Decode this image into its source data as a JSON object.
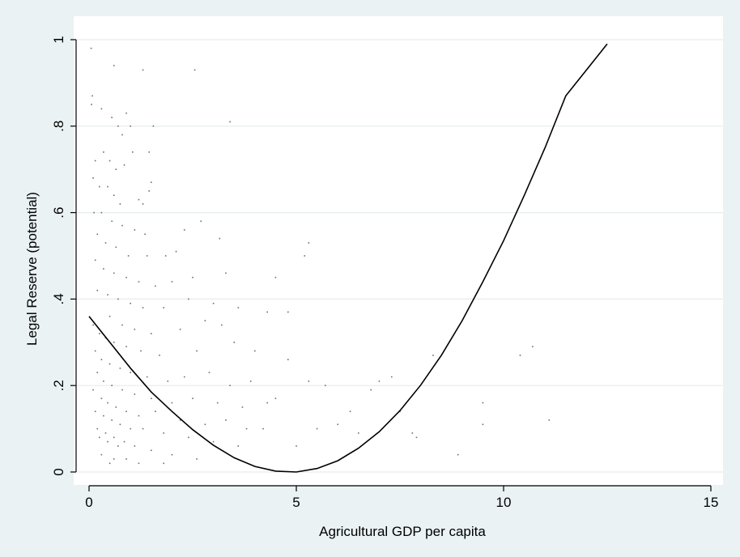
{
  "chart_data": {
    "type": "scatter",
    "title": "",
    "xlabel": "Agricultural GDP per capita",
    "ylabel": "Legal Reserve (potential)",
    "xlim": [
      0,
      15
    ],
    "ylim": [
      0,
      1
    ],
    "x_ticks": [
      0,
      5,
      10,
      15
    ],
    "y_ticks": [
      0,
      0.2,
      0.4,
      0.6,
      0.8,
      1
    ],
    "x_tick_labels": [
      "0",
      "5",
      "10",
      "15"
    ],
    "y_tick_labels": [
      "0",
      ".2",
      ".4",
      ".6",
      ".8",
      "1"
    ],
    "grid": "horizontal",
    "legend": "none",
    "colors": {
      "background": "#eaf2f3",
      "plot_background": "#ffffff",
      "points": "#6d6d6d",
      "fit_line": "#000000",
      "grid": "#e6ecec"
    },
    "series": [
      {
        "type": "scatter",
        "points": [
          [
            0.05,
            0.98
          ],
          [
            0.08,
            0.87
          ],
          [
            0.06,
            0.85
          ],
          [
            0.6,
            0.94
          ],
          [
            1.3,
            0.93
          ],
          [
            2.55,
            0.93
          ],
          [
            3.4,
            0.81
          ],
          [
            0.3,
            0.84
          ],
          [
            0.55,
            0.82
          ],
          [
            0.7,
            0.8
          ],
          [
            0.9,
            0.83
          ],
          [
            0.8,
            0.78
          ],
          [
            1.0,
            0.8
          ],
          [
            1.05,
            0.74
          ],
          [
            1.45,
            0.74
          ],
          [
            1.55,
            0.8
          ],
          [
            0.15,
            0.72
          ],
          [
            0.35,
            0.74
          ],
          [
            0.5,
            0.72
          ],
          [
            0.65,
            0.7
          ],
          [
            0.85,
            0.71
          ],
          [
            1.5,
            0.67
          ],
          [
            1.45,
            0.65
          ],
          [
            0.1,
            0.68
          ],
          [
            0.25,
            0.66
          ],
          [
            0.45,
            0.66
          ],
          [
            0.6,
            0.64
          ],
          [
            0.75,
            0.62
          ],
          [
            1.2,
            0.63
          ],
          [
            1.3,
            0.62
          ],
          [
            0.12,
            0.6
          ],
          [
            0.3,
            0.6
          ],
          [
            0.55,
            0.58
          ],
          [
            0.8,
            0.57
          ],
          [
            1.1,
            0.56
          ],
          [
            1.35,
            0.55
          ],
          [
            2.3,
            0.56
          ],
          [
            2.7,
            0.58
          ],
          [
            0.2,
            0.55
          ],
          [
            0.4,
            0.53
          ],
          [
            0.65,
            0.52
          ],
          [
            0.95,
            0.5
          ],
          [
            1.4,
            0.5
          ],
          [
            1.85,
            0.5
          ],
          [
            2.1,
            0.51
          ],
          [
            3.15,
            0.54
          ],
          [
            5.3,
            0.53
          ],
          [
            5.2,
            0.5
          ],
          [
            0.15,
            0.49
          ],
          [
            0.35,
            0.47
          ],
          [
            0.6,
            0.46
          ],
          [
            0.9,
            0.45
          ],
          [
            1.2,
            0.44
          ],
          [
            1.6,
            0.43
          ],
          [
            2.0,
            0.44
          ],
          [
            2.5,
            0.45
          ],
          [
            3.3,
            0.46
          ],
          [
            4.5,
            0.45
          ],
          [
            0.2,
            0.42
          ],
          [
            0.45,
            0.41
          ],
          [
            0.7,
            0.4
          ],
          [
            1.0,
            0.39
          ],
          [
            1.3,
            0.38
          ],
          [
            1.8,
            0.38
          ],
          [
            2.4,
            0.4
          ],
          [
            3.0,
            0.39
          ],
          [
            3.6,
            0.38
          ],
          [
            4.3,
            0.37
          ],
          [
            4.8,
            0.37
          ],
          [
            2.8,
            0.35
          ],
          [
            3.2,
            0.34
          ],
          [
            2.2,
            0.33
          ],
          [
            0.5,
            0.36
          ],
          [
            0.8,
            0.34
          ],
          [
            1.1,
            0.33
          ],
          [
            1.5,
            0.32
          ],
          [
            0.1,
            0.34
          ],
          [
            0.25,
            0.32
          ],
          [
            0.4,
            0.31
          ],
          [
            0.6,
            0.3
          ],
          [
            0.9,
            0.29
          ],
          [
            1.25,
            0.28
          ],
          [
            1.7,
            0.27
          ],
          [
            2.6,
            0.28
          ],
          [
            3.5,
            0.3
          ],
          [
            4.0,
            0.28
          ],
          [
            0.15,
            0.28
          ],
          [
            0.3,
            0.26
          ],
          [
            0.5,
            0.25
          ],
          [
            0.75,
            0.24
          ],
          [
            1.0,
            0.23
          ],
          [
            1.4,
            0.22
          ],
          [
            1.9,
            0.21
          ],
          [
            2.3,
            0.22
          ],
          [
            2.9,
            0.23
          ],
          [
            3.4,
            0.2
          ],
          [
            3.9,
            0.21
          ],
          [
            0.2,
            0.23
          ],
          [
            0.35,
            0.21
          ],
          [
            0.55,
            0.2
          ],
          [
            0.8,
            0.19
          ],
          [
            1.1,
            0.18
          ],
          [
            1.5,
            0.17
          ],
          [
            2.0,
            0.16
          ],
          [
            2.5,
            0.17
          ],
          [
            3.1,
            0.16
          ],
          [
            3.7,
            0.15
          ],
          [
            4.3,
            0.16
          ],
          [
            0.1,
            0.19
          ],
          [
            0.3,
            0.17
          ],
          [
            0.45,
            0.16
          ],
          [
            0.65,
            0.15
          ],
          [
            0.9,
            0.14
          ],
          [
            1.2,
            0.13
          ],
          [
            1.6,
            0.14
          ],
          [
            2.2,
            0.12
          ],
          [
            2.8,
            0.11
          ],
          [
            3.3,
            0.12
          ],
          [
            3.8,
            0.1
          ],
          [
            0.15,
            0.14
          ],
          [
            0.35,
            0.13
          ],
          [
            0.55,
            0.12
          ],
          [
            0.75,
            0.11
          ],
          [
            1.0,
            0.1
          ],
          [
            1.3,
            0.1
          ],
          [
            1.8,
            0.09
          ],
          [
            2.4,
            0.08
          ],
          [
            3.0,
            0.07
          ],
          [
            3.6,
            0.06
          ],
          [
            0.2,
            0.1
          ],
          [
            0.4,
            0.09
          ],
          [
            0.6,
            0.08
          ],
          [
            0.85,
            0.07
          ],
          [
            1.1,
            0.06
          ],
          [
            1.5,
            0.05
          ],
          [
            2.0,
            0.04
          ],
          [
            2.6,
            0.03
          ],
          [
            0.5,
            0.02
          ],
          [
            0.9,
            0.03
          ],
          [
            0.25,
            0.08
          ],
          [
            0.45,
            0.07
          ],
          [
            0.7,
            0.06
          ],
          [
            0.3,
            0.04
          ],
          [
            0.6,
            0.03
          ],
          [
            1.2,
            0.02
          ],
          [
            1.8,
            0.02
          ],
          [
            5.0,
            0.06
          ],
          [
            5.5,
            0.1
          ],
          [
            6.0,
            0.11
          ],
          [
            6.5,
            0.09
          ],
          [
            5.7,
            0.2
          ],
          [
            6.3,
            0.14
          ],
          [
            7.0,
            0.21
          ],
          [
            7.3,
            0.22
          ],
          [
            7.5,
            0.14
          ],
          [
            7.8,
            0.09
          ],
          [
            7.9,
            0.08
          ],
          [
            8.3,
            0.27
          ],
          [
            8.9,
            0.04
          ],
          [
            9.5,
            0.11
          ],
          [
            9.5,
            0.16
          ],
          [
            10.4,
            0.27
          ],
          [
            10.7,
            0.29
          ],
          [
            11.1,
            0.12
          ],
          [
            4.5,
            0.17
          ],
          [
            4.2,
            0.1
          ],
          [
            5.3,
            0.21
          ],
          [
            6.8,
            0.19
          ],
          [
            4.8,
            0.26
          ]
        ]
      },
      {
        "type": "line",
        "name": "",
        "fit": "quadratic",
        "points": [
          [
            0,
            0.36
          ],
          [
            0.5,
            0.3
          ],
          [
            1,
            0.24
          ],
          [
            1.5,
            0.185
          ],
          [
            2,
            0.14
          ],
          [
            2.5,
            0.098
          ],
          [
            3,
            0.062
          ],
          [
            3.5,
            0.033
          ],
          [
            4,
            0.013
          ],
          [
            4.5,
            0.002
          ],
          [
            5,
            0.0
          ],
          [
            5.5,
            0.008
          ],
          [
            6,
            0.026
          ],
          [
            6.5,
            0.055
          ],
          [
            7,
            0.093
          ],
          [
            7.5,
            0.142
          ],
          [
            8,
            0.201
          ],
          [
            8.5,
            0.27
          ],
          [
            9,
            0.35
          ],
          [
            9.5,
            0.44
          ],
          [
            10,
            0.535
          ],
          [
            10.5,
            0.64
          ],
          [
            11,
            0.75
          ],
          [
            11.5,
            0.87
          ],
          [
            12,
            0.93
          ],
          [
            12.5,
            0.99
          ]
        ]
      }
    ]
  }
}
